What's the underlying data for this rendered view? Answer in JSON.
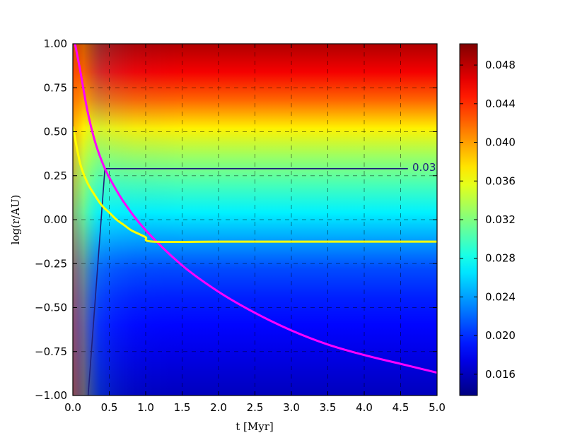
{
  "chart_data": {
    "type": "heatmap",
    "title": "",
    "xlabel": "t [Myr]",
    "ylabel": "log(r/AU)",
    "xlim": [
      0.0,
      5.0
    ],
    "ylim": [
      -1.0,
      1.0
    ],
    "grid": true,
    "xticks": [
      "0.0",
      "0.5",
      "1.0",
      "1.5",
      "2.0",
      "2.5",
      "3.0",
      "3.5",
      "4.0",
      "4.5",
      "5.0"
    ],
    "yticks": [
      "1.00",
      "0.75",
      "0.50",
      "0.25",
      "0.00",
      "−0.25",
      "−0.50",
      "−0.75",
      "−1.00"
    ],
    "colorbar": {
      "colormap": "jet",
      "range": [
        0.0138,
        0.0502
      ],
      "ticks": [
        "0.048",
        "0.044",
        "0.040",
        "0.036",
        "0.032",
        "0.028",
        "0.024",
        "0.020",
        "0.016"
      ]
    },
    "contour": {
      "label": "0.03",
      "label_shown": "0.03",
      "color": "#1f1f7a",
      "points": [
        [
          0.21,
          -1.0
        ],
        [
          0.44,
          0.29
        ],
        [
          4.6,
          0.29
        ]
      ]
    },
    "series": [
      {
        "color": "#ff00ff",
        "x": [
          0.03,
          0.1,
          0.2,
          0.3,
          0.4,
          0.5,
          0.7,
          1.0,
          1.5,
          2.0,
          2.5,
          3.0,
          3.5,
          4.0,
          4.5,
          5.0
        ],
        "y": [
          1.0,
          0.85,
          0.62,
          0.45,
          0.33,
          0.24,
          0.1,
          -0.06,
          -0.26,
          -0.41,
          -0.53,
          -0.63,
          -0.71,
          -0.77,
          -0.82,
          -0.87
        ]
      },
      {
        "color": "#ffff00",
        "x": [
          0.0,
          0.1,
          0.2,
          0.3,
          0.4,
          0.5,
          0.6,
          0.7,
          0.8,
          0.9,
          1.0,
          1.1,
          2.0,
          3.0,
          4.0,
          5.0
        ],
        "y": [
          0.53,
          0.32,
          0.21,
          0.14,
          0.08,
          0.04,
          0.0,
          -0.03,
          -0.06,
          -0.08,
          -0.1,
          -0.125,
          -0.125,
          -0.125,
          -0.125,
          -0.125
        ]
      }
    ]
  }
}
